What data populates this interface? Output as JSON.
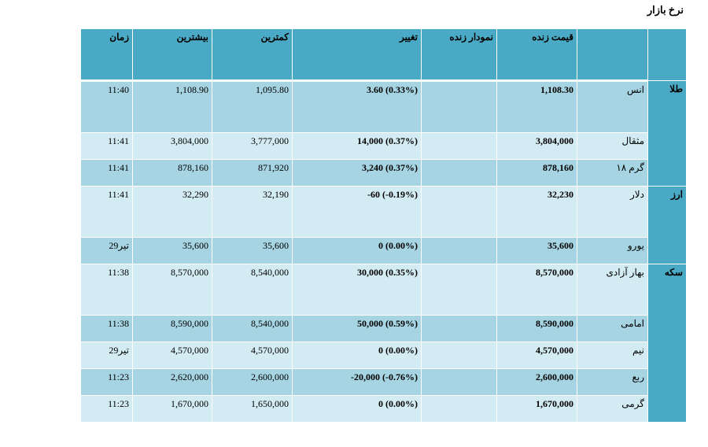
{
  "title": "نرخ بازار",
  "headers": {
    "time": "زمان",
    "high": "بیشترین",
    "low": "کمترین",
    "change": "تغییر",
    "chart": "نمودار زنده",
    "price": "قیمت زنده",
    "name": "",
    "group": ""
  },
  "groups": [
    {
      "name": "طلا",
      "rows": [
        {
          "name": "انس",
          "price": "1,108.30",
          "chart": "",
          "change": "3.60 (0.33%)",
          "low": "1,095.80",
          "high": "1,108.90",
          "time": "11:40"
        },
        {
          "name": "مثقال",
          "price": "3,804,000",
          "chart": "",
          "change": "14,000 (0.37%)",
          "low": "3,777,000",
          "high": "3,804,000",
          "time": "11:41"
        },
        {
          "name": "گرم ۱۸",
          "price": "878,160",
          "chart": "",
          "change": "3,240 (0.37%)",
          "low": "871,920",
          "high": "878,160",
          "time": "11:41"
        }
      ]
    },
    {
      "name": "ارز",
      "rows": [
        {
          "name": "دلار",
          "price": "32,230",
          "chart": "",
          "change": "-60 (-0.19%)",
          "low": "32,190",
          "high": "32,290",
          "time": "11:41"
        },
        {
          "name": "یورو",
          "price": "35,600",
          "chart": "",
          "change": "0 (0.00%)",
          "low": "35,600",
          "high": "35,600",
          "time": "29تیر"
        }
      ]
    },
    {
      "name": "سکه",
      "rows": [
        {
          "name": "بهار آزادی",
          "price": "8,570,000",
          "chart": "",
          "change": "30,000 (0.35%)",
          "low": "8,540,000",
          "high": "8,570,000",
          "time": "11:38"
        },
        {
          "name": "امامی",
          "price": "8,590,000",
          "chart": "",
          "change": "50,000 (0.59%)",
          "low": "8,540,000",
          "high": "8,590,000",
          "time": "11:38"
        },
        {
          "name": "نیم",
          "price": "4,570,000",
          "chart": "",
          "change": "0 (0.00%)",
          "low": "4,570,000",
          "high": "4,570,000",
          "time": "29تیر"
        },
        {
          "name": "ربع",
          "price": "2,600,000",
          "chart": "",
          "change": "-20,000 (-0.76%)",
          "low": "2,600,000",
          "high": "2,620,000",
          "time": "11:23"
        },
        {
          "name": "گرمی",
          "price": "1,670,000",
          "chart": "",
          "change": "0 (0.00%)",
          "low": "1,650,000",
          "high": "1,670,000",
          "time": "11:23"
        }
      ]
    }
  ],
  "colors": {
    "header": "#4aa9c4",
    "row_dark": "#a6d4e2",
    "row_light": "#d3ebf2"
  }
}
